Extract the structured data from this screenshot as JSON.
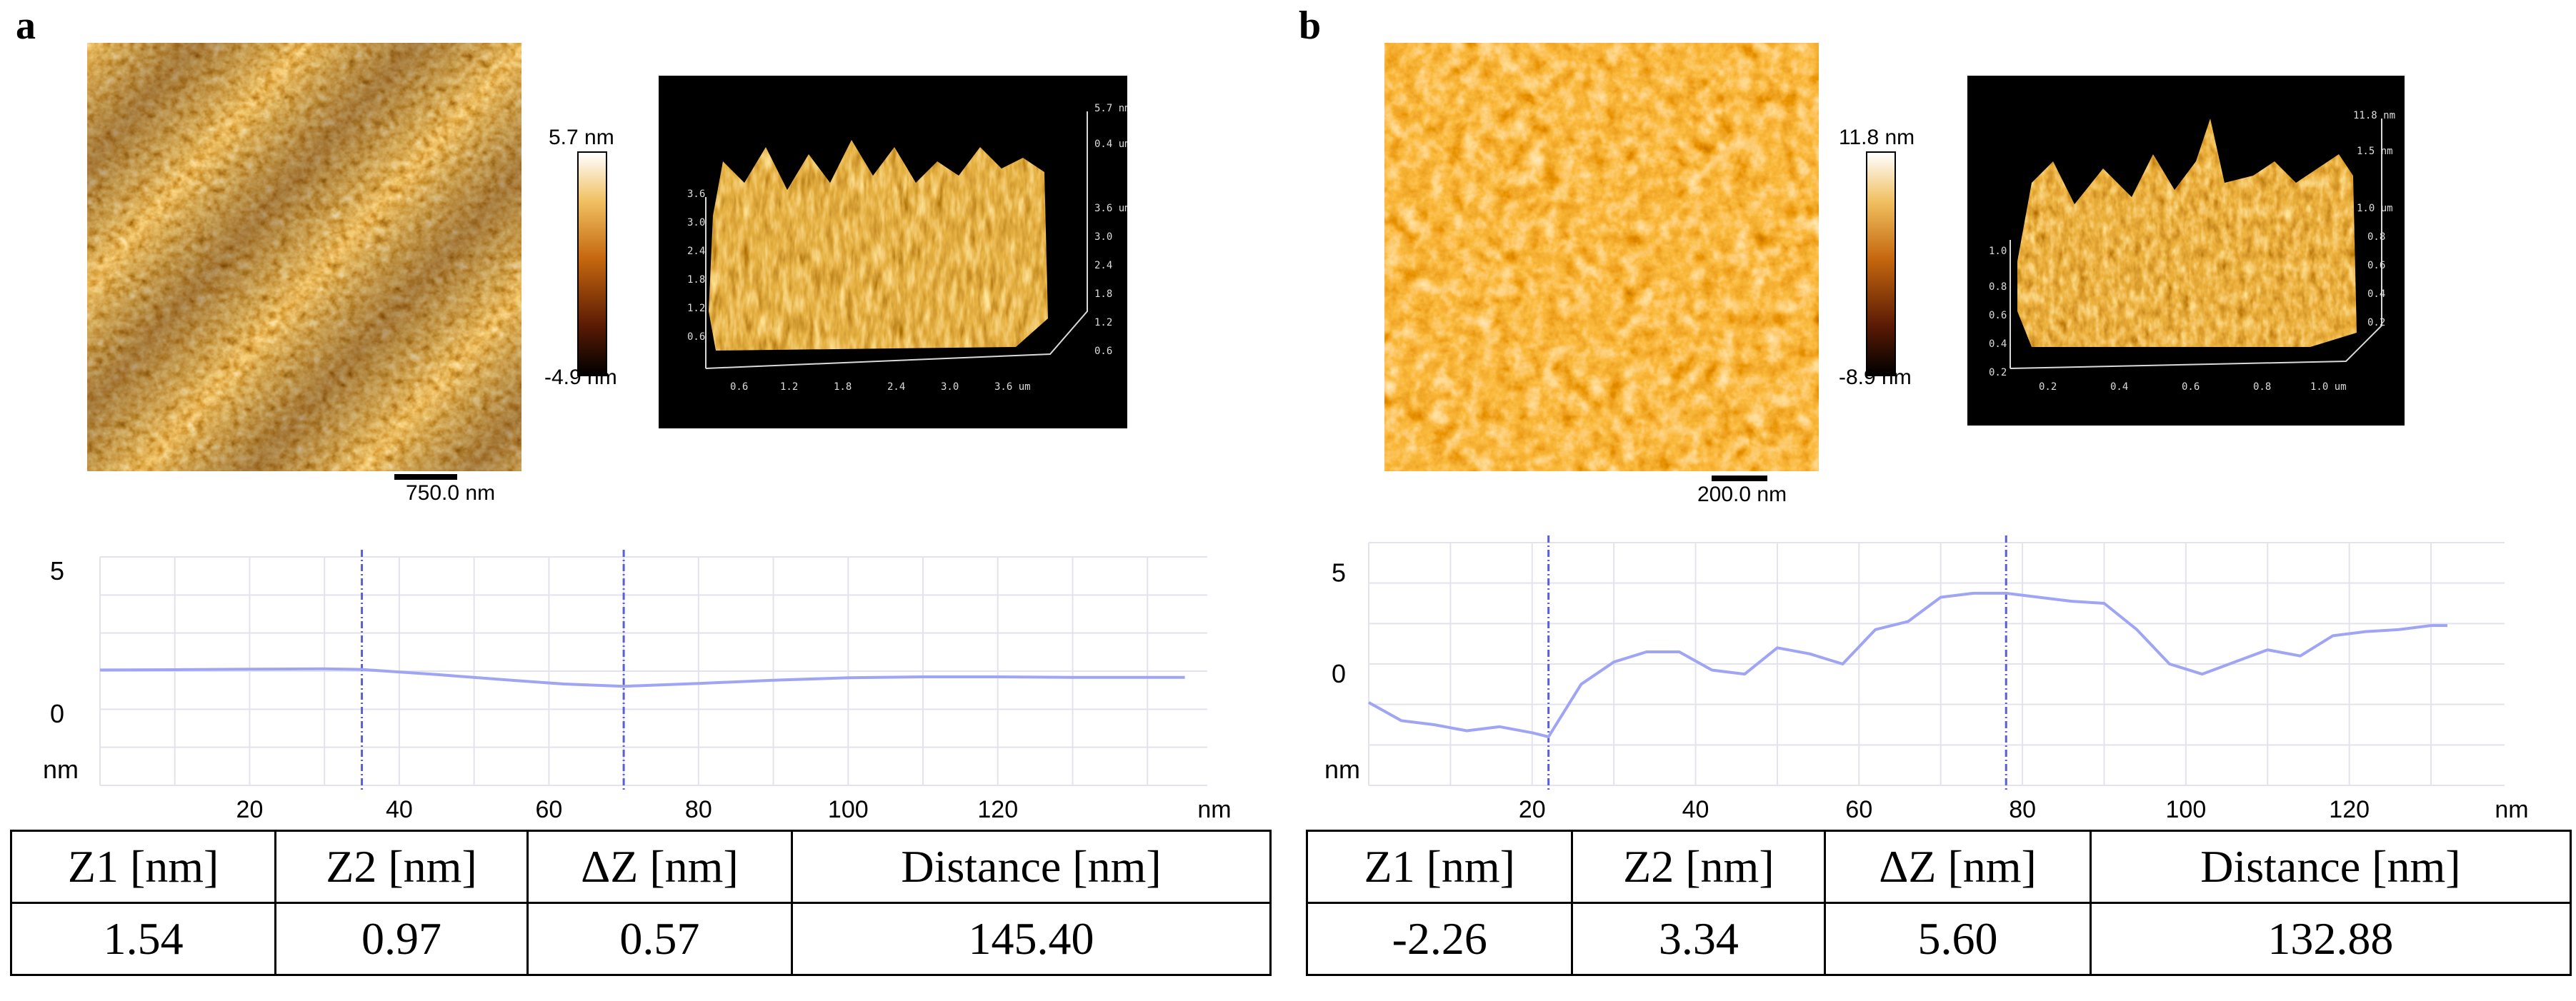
{
  "figure": {
    "panels": [
      {
        "label": "a",
        "scale_bar": "750.0 nm",
        "colorbar": {
          "max": "5.7 nm",
          "min": "-4.9 nm"
        },
        "topography_3d": {
          "x_ticks": [
            "0.6",
            "1.2",
            "1.8",
            "2.4",
            "3.0",
            "3.6 um"
          ],
          "left_ticks": [
            "0.6",
            "1.2",
            "1.8",
            "2.4",
            "3.0",
            "3.6"
          ],
          "right_ticks": [
            "5.7 nm",
            "0.4 um",
            "3.6 um",
            "3.0",
            "2.4",
            "1.8",
            "1.2",
            "0.6"
          ]
        },
        "profile": {
          "y_label_top": "5",
          "y_label_mid": "0",
          "y_unit": "nm",
          "x_ticks": [
            "20",
            "40",
            "60",
            "80",
            "100",
            "120"
          ],
          "x_unit": "nm",
          "cursor_x": [
            35,
            70
          ],
          "x_range": [
            0,
            148
          ],
          "y_range": [
            -2.5,
            5.5
          ],
          "x": [
            0,
            10,
            20,
            30,
            35,
            45,
            55,
            62,
            70,
            80,
            90,
            100,
            110,
            120,
            130,
            145
          ],
          "y": [
            1.54,
            1.55,
            1.57,
            1.58,
            1.56,
            1.38,
            1.18,
            1.05,
            0.97,
            1.07,
            1.18,
            1.27,
            1.3,
            1.3,
            1.28,
            1.28
          ]
        },
        "table": {
          "headers": [
            "Z1 [nm]",
            "Z2 [nm]",
            "ΔZ [nm]",
            "Distance [nm]"
          ],
          "values": [
            "1.54",
            "0.97",
            "0.57",
            "145.40"
          ]
        }
      },
      {
        "label": "b",
        "scale_bar": "200.0 nm",
        "colorbar": {
          "max": "11.8 nm",
          "min": "-8.9 nm"
        },
        "topography_3d": {
          "x_ticks": [
            "0.2",
            "0.4",
            "0.6",
            "0.8",
            "1.0 um"
          ],
          "left_ticks": [
            "0.2",
            "0.4",
            "0.6",
            "0.8",
            "1.0"
          ],
          "right_ticks": [
            "11.8 nm",
            "1.5 nm",
            "1.0 um",
            "0.8",
            "0.6",
            "0.4",
            "0.2"
          ]
        },
        "profile": {
          "y_label_top": "5",
          "y_label_mid": "0",
          "y_unit": "nm",
          "x_ticks": [
            "20",
            "40",
            "60",
            "80",
            "100",
            "120"
          ],
          "x_unit": "nm",
          "cursor_x": [
            22,
            78
          ],
          "x_range": [
            0,
            139
          ],
          "y_range": [
            -5.5,
            6.5
          ],
          "x": [
            0,
            4,
            8,
            12,
            16,
            20,
            22,
            26,
            30,
            34,
            38,
            42,
            46,
            50,
            54,
            58,
            62,
            66,
            70,
            74,
            78,
            82,
            86,
            90,
            94,
            98,
            102,
            106,
            110,
            114,
            118,
            122,
            126,
            130,
            132
          ],
          "y": [
            -1.4,
            -2.3,
            -2.5,
            -2.8,
            -2.6,
            -2.9,
            -3.1,
            -0.5,
            0.6,
            1.1,
            1.1,
            0.2,
            0.0,
            1.3,
            1.0,
            0.5,
            2.2,
            2.6,
            3.8,
            4.0,
            4.0,
            3.8,
            3.6,
            3.5,
            2.2,
            0.5,
            0.0,
            0.6,
            1.2,
            0.9,
            1.9,
            2.1,
            2.2,
            2.4,
            2.4
          ]
        },
        "table": {
          "headers": [
            "Z1 [nm]",
            "Z2 [nm]",
            "ΔZ [nm]",
            "Distance [nm]"
          ],
          "values": [
            "-2.26",
            "3.34",
            "5.60",
            "132.88"
          ]
        }
      }
    ],
    "colors": {
      "profile_line": "#9fa4f5",
      "cursor_line": "#5b5fd6",
      "grid": "#e3e3ee",
      "afm_dark": "#2a0a00",
      "afm_mid": "#b8560c",
      "afm_light": "#ffe6a0"
    }
  }
}
